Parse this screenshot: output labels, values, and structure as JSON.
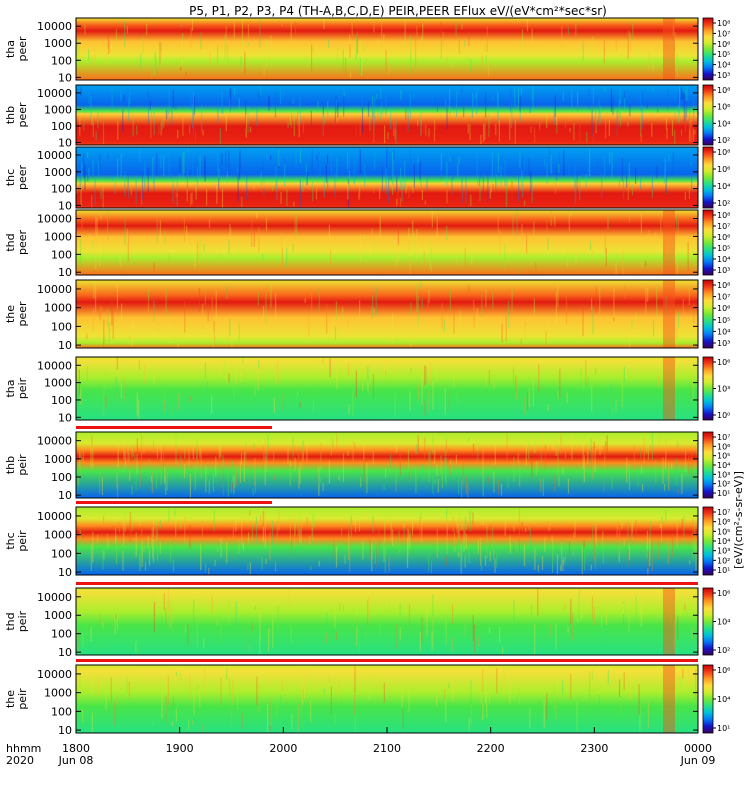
{
  "chart_data": {
    "type": "heatmap",
    "title": "P5, P1, P2, P3, P4 (TH-A,B,C,D,E) PEIR,PEER EFlux eV/(eV*cm²*sec*sr)",
    "x_axis": {
      "ticks": [
        "1800",
        "1900",
        "2000",
        "2100",
        "2200",
        "2300",
        "0000"
      ],
      "dates": [
        "Jun 08",
        "Jun 09"
      ],
      "label_top": "hhmm",
      "label_bottom": "2020"
    },
    "y_scale": "log",
    "y_ticks": [
      "10",
      "100",
      "1000",
      "10000"
    ],
    "panels": [
      {
        "name": "tha peer",
        "label": "tha\npeer",
        "type": "peer",
        "band": [
          200,
          8000
        ],
        "cbar": [
          "10⁸",
          "10⁷",
          "10⁶",
          "10⁵",
          "10⁴",
          "10³"
        ]
      },
      {
        "name": "thb peer",
        "label": "thb\npeer",
        "type": "flat",
        "band": [
          12,
          800
        ],
        "cbar": [
          "10⁸",
          "10⁶",
          "10⁴",
          "10²"
        ]
      },
      {
        "name": "thc peer",
        "label": "thc\npeer",
        "type": "flat",
        "band": [
          10,
          300
        ],
        "cbar": [
          "10⁸",
          "10⁶",
          "10⁴",
          "10²"
        ]
      },
      {
        "name": "thd peer",
        "label": "thd\npeer",
        "type": "peer",
        "band": [
          150,
          6000
        ],
        "cbar": [
          "10⁸",
          "10⁷",
          "10⁶",
          "10⁵",
          "10⁴",
          "10³"
        ]
      },
      {
        "name": "the peer",
        "label": "the\npeer",
        "type": "peer2",
        "band": [
          30,
          3000
        ],
        "cbar": [
          "10⁸",
          "10⁷",
          "10⁶",
          "10⁵",
          "10⁴",
          "10³"
        ]
      },
      {
        "name": "tha peir",
        "label": "tha\npeir",
        "type": "peir",
        "band": [
          2000,
          20000
        ],
        "cbar": [
          "10⁶",
          "10³",
          "10⁰"
        ]
      },
      {
        "name": "thb peir",
        "label": "thb\npeir",
        "type": "peir2",
        "band": [
          600,
          3000
        ],
        "cbar": [
          "10⁷",
          "10⁶",
          "10⁵",
          "10⁴",
          "10³",
          "10²",
          "10¹"
        ]
      },
      {
        "name": "thc peir",
        "label": "thc\npeir",
        "type": "peir2",
        "band": [
          600,
          3000
        ],
        "cbar": [
          "10⁷",
          "10⁶",
          "10⁵",
          "10⁴",
          "10³",
          "10²",
          "10¹"
        ]
      },
      {
        "name": "thd peir",
        "label": "thd\npeir",
        "type": "peir",
        "band": [
          1500,
          20000
        ],
        "cbar": [
          "10⁶",
          "10⁴",
          "10²"
        ]
      },
      {
        "name": "the peir",
        "label": "the\npeir",
        "type": "peir",
        "band": [
          1000,
          15000
        ],
        "cbar": [
          "10⁶",
          "10⁴",
          "10¹"
        ]
      }
    ],
    "colorbar_label": "[eV/(cm²-s-sr-eV)]"
  }
}
